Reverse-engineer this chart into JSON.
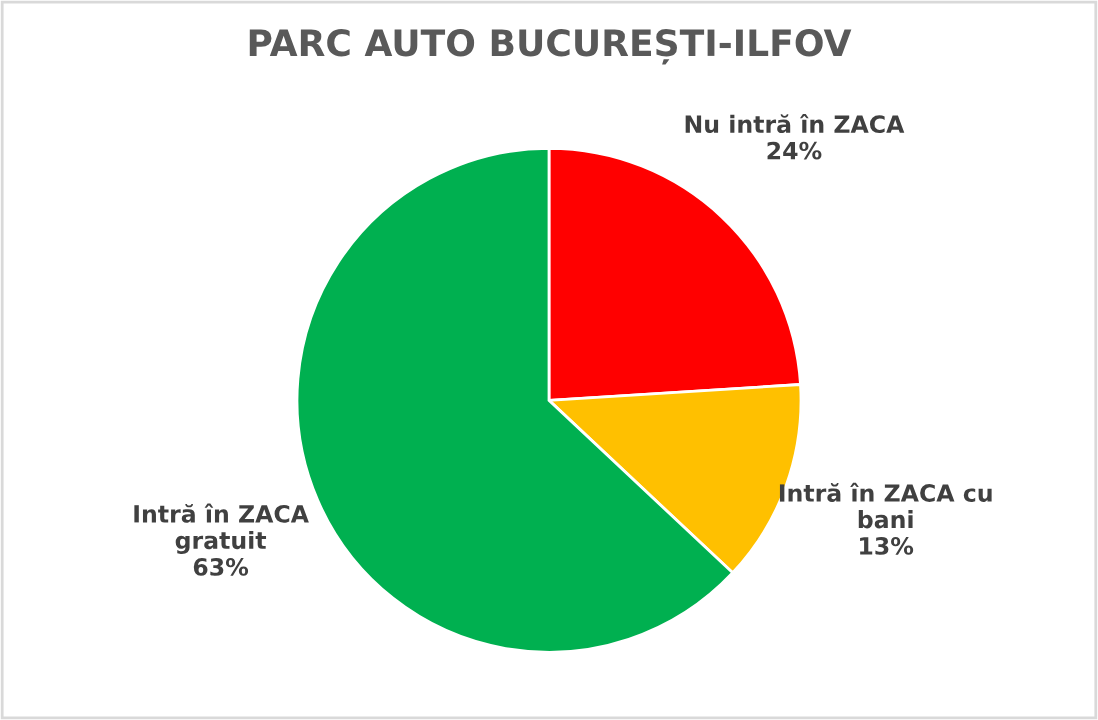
{
  "chart_data": {
    "type": "pie",
    "title": "PARC AUTO BUCUREȘTI-ILFOV",
    "categories": [
      "Nu intră în ZACA",
      "Intră în ZACA cu\nbani",
      "Intră în ZACA\ngratuit"
    ],
    "values": [
      24,
      13,
      63
    ],
    "value_labels": [
      "24%",
      "13%",
      "63%"
    ],
    "colors": [
      "#ff0000",
      "#ffc000",
      "#00b050"
    ],
    "legend": false
  }
}
